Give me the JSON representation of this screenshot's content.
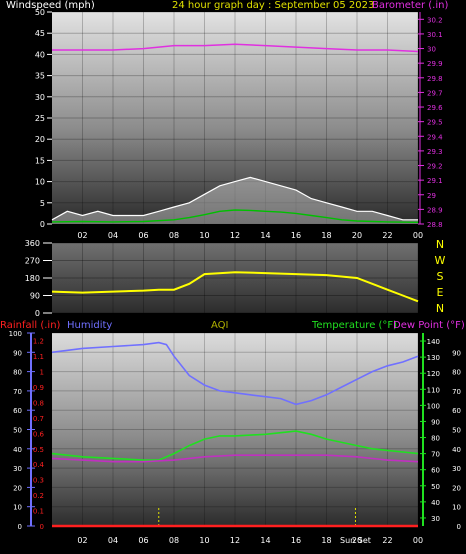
{
  "header": {
    "windspeed_label": "Windspeed (mph)",
    "title": "24 hour graph day : September 05 2023",
    "barometer_label": "Barometer (.in)"
  },
  "colors": {
    "windspeed": "#ffffff",
    "wind_avg": "#00c000",
    "barometer": "#e030e0",
    "direction": "#ffff00",
    "humidity": "#7070ff",
    "temperature": "#20e020",
    "dewpoint": "#c030c0",
    "rainfall": "#ff2020",
    "aqi": "#b0b000",
    "axis_text": "#ffffff"
  },
  "legend2": {
    "rainfall": "Rainfall (.in)",
    "humidity": "Humidity",
    "aqi": "AQI",
    "temperature": "Temperature (°F)",
    "dewpoint": "Dew Point (°F)"
  },
  "direction_letters": [
    "N",
    "W",
    "S",
    "E",
    "N"
  ],
  "chart_data": [
    {
      "type": "line",
      "name": "wind-barometer",
      "x_ticks": [
        "02",
        "04",
        "06",
        "08",
        "10",
        "12",
        "14",
        "16",
        "18",
        "20",
        "22",
        "00"
      ],
      "x_range_hours": [
        0,
        24
      ],
      "y_left": {
        "label": "Windspeed (mph)",
        "ticks": [
          0,
          5,
          10,
          15,
          20,
          25,
          30,
          35,
          40,
          45,
          50
        ],
        "range": [
          0,
          50
        ]
      },
      "y_right": {
        "label": "Barometer (.in)",
        "ticks": [
          28.8,
          28.9,
          29,
          29.1,
          29.2,
          29.3,
          29.4,
          29.5,
          29.6,
          29.7,
          29.8,
          29.9,
          30,
          30.1,
          30.2
        ],
        "range": [
          28.8,
          30.25
        ]
      },
      "series": [
        {
          "name": "Barometer",
          "axis": "right",
          "x": [
            0,
            2,
            4,
            6,
            8,
            10,
            12,
            14,
            16,
            18,
            20,
            22,
            24
          ],
          "y": [
            29.99,
            29.99,
            29.99,
            30.0,
            30.02,
            30.02,
            30.03,
            30.02,
            30.01,
            30.0,
            29.99,
            29.99,
            29.98
          ]
        },
        {
          "name": "Windspeed gust",
          "axis": "left",
          "x": [
            0,
            1,
            2,
            3,
            4,
            5,
            6,
            7,
            8,
            9,
            10,
            11,
            12,
            13,
            14,
            15,
            16,
            17,
            18,
            19,
            20,
            21,
            22,
            23,
            24
          ],
          "y": [
            1,
            3,
            2,
            3,
            2,
            2,
            2,
            3,
            4,
            5,
            7,
            9,
            10,
            11,
            10,
            9,
            8,
            6,
            5,
            4,
            3,
            3,
            2,
            1,
            1
          ]
        },
        {
          "name": "Windspeed average",
          "axis": "left",
          "x": [
            0,
            2,
            4,
            6,
            8,
            9,
            10,
            11,
            12,
            13,
            14,
            15,
            16,
            17,
            18,
            19,
            20,
            22,
            24
          ],
          "y": [
            0.5,
            0.6,
            0.5,
            0.6,
            1,
            1.5,
            2.2,
            3,
            3.3,
            3.2,
            3,
            2.8,
            2.5,
            2,
            1.5,
            1,
            0.7,
            0.5,
            0.4
          ]
        }
      ]
    },
    {
      "type": "line",
      "name": "wind-direction",
      "x_range_hours": [
        0,
        24
      ],
      "y_left": {
        "ticks": [
          0,
          90,
          180,
          270,
          360
        ],
        "range": [
          0,
          360
        ]
      },
      "series": [
        {
          "name": "Wind direction",
          "x": [
            0,
            2,
            4,
            6,
            7,
            8,
            9,
            10,
            12,
            14,
            16,
            18,
            20,
            21,
            22,
            23,
            24
          ],
          "y": [
            110,
            105,
            110,
            115,
            120,
            120,
            150,
            200,
            210,
            205,
            200,
            195,
            180,
            150,
            120,
            90,
            60
          ]
        }
      ]
    },
    {
      "type": "line",
      "name": "rain-humidity-temperature",
      "x_ticks": [
        "02",
        "04",
        "06",
        "08",
        "10",
        "12",
        "14",
        "16",
        "18",
        "20",
        "22",
        "00"
      ],
      "x_range_hours": [
        0,
        24
      ],
      "y_rain": {
        "ticks": [
          0,
          0.1,
          0.2,
          0.3,
          0.4,
          0.5,
          0.6,
          0.7,
          0.8,
          0.9,
          1,
          1.1,
          1.2
        ],
        "range": [
          0,
          1.25
        ]
      },
      "y_humidity": {
        "ticks": [
          0,
          10,
          20,
          30,
          40,
          50,
          60,
          70,
          80,
          90,
          100
        ],
        "range": [
          0,
          100
        ]
      },
      "y_temp": {
        "ticks": [
          30,
          40,
          50,
          60,
          70,
          80,
          90,
          100,
          110,
          120,
          130,
          140
        ],
        "range": [
          25,
          145
        ]
      },
      "y_temp_inner": {
        "ticks": [
          0,
          10,
          20,
          30,
          40,
          50,
          60,
          70,
          80,
          90
        ],
        "range": [
          0,
          100
        ]
      },
      "series": [
        {
          "name": "Humidity",
          "axis": "humidity",
          "x": [
            0,
            2,
            4,
            6,
            7,
            7.5,
            8,
            9,
            10,
            11,
            12,
            13,
            14,
            15,
            16,
            17,
            18,
            19,
            20,
            21,
            22,
            23,
            24
          ],
          "y": [
            90,
            92,
            93,
            94,
            95,
            94,
            88,
            78,
            73,
            70,
            69,
            68,
            67,
            66,
            63,
            65,
            68,
            72,
            76,
            80,
            83,
            85,
            88
          ]
        },
        {
          "name": "Temperature",
          "axis": "temp",
          "x": [
            0,
            2,
            4,
            6,
            7,
            8,
            9,
            10,
            11,
            12,
            14,
            15,
            16,
            17,
            18,
            19,
            20,
            21,
            22,
            23,
            24
          ],
          "y": [
            70,
            68,
            67,
            66,
            66,
            70,
            75,
            79,
            81,
            81,
            82,
            83,
            84,
            82,
            79,
            77,
            75,
            73,
            72,
            71,
            70
          ]
        },
        {
          "name": "Dew Point",
          "axis": "temp",
          "x": [
            0,
            2,
            4,
            6,
            8,
            10,
            12,
            14,
            16,
            18,
            20,
            22,
            24
          ],
          "y": [
            67,
            66,
            65,
            65,
            66,
            68,
            69,
            69,
            69,
            69,
            68,
            66,
            65
          ]
        },
        {
          "name": "Rainfall",
          "axis": "rain",
          "x": [
            0,
            24
          ],
          "y": [
            0,
            0
          ]
        }
      ],
      "markers": [
        {
          "label": "",
          "x_hour": 7
        },
        {
          "label": "Sun Set",
          "x_hour": 19.9
        }
      ]
    }
  ]
}
